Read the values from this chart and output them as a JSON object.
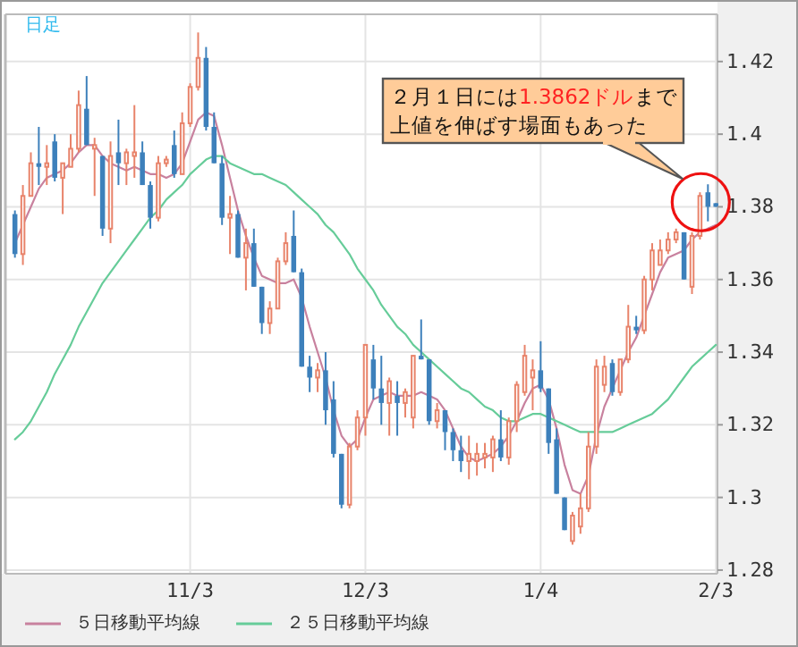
{
  "chart_data": {
    "type": "candlestick",
    "title": "日足",
    "categories": [
      null,
      null,
      null,
      null,
      null,
      null,
      null,
      null,
      null,
      null,
      null,
      null,
      null,
      null,
      null,
      null,
      null,
      null,
      null,
      null,
      null,
      null,
      "11/3",
      null,
      null,
      null,
      null,
      null,
      null,
      null,
      null,
      null,
      null,
      null,
      null,
      null,
      null,
      null,
      null,
      null,
      null,
      null,
      null,
      null,
      "12/3",
      null,
      null,
      null,
      null,
      null,
      null,
      null,
      null,
      null,
      null,
      null,
      null,
      null,
      null,
      null,
      null,
      null,
      null,
      null,
      null,
      null,
      "1/4",
      null,
      null,
      null,
      null,
      null,
      null,
      null,
      null,
      null,
      null,
      null,
      null,
      null,
      null,
      null,
      null,
      null,
      null,
      null,
      null,
      null,
      "2/3"
    ],
    "ohlc": [
      [
        1.378,
        1.379,
        1.366,
        1.367
      ],
      [
        1.367,
        1.386,
        1.364,
        1.383
      ],
      [
        1.383,
        1.395,
        1.383,
        1.392
      ],
      [
        1.392,
        1.402,
        1.386,
        1.391
      ],
      [
        1.391,
        1.397,
        1.386,
        1.392
      ],
      [
        1.398,
        1.4,
        1.387,
        1.388
      ],
      [
        1.388,
        1.392,
        1.378,
        1.392
      ],
      [
        1.391,
        1.4,
        1.391,
        1.396
      ],
      [
        1.396,
        1.412,
        1.395,
        1.408
      ],
      [
        1.407,
        1.416,
        1.397,
        1.397
      ],
      [
        1.396,
        1.399,
        1.383,
        1.397
      ],
      [
        1.394,
        1.394,
        1.372,
        1.374
      ],
      [
        1.374,
        1.398,
        1.37,
        1.394
      ],
      [
        1.395,
        1.404,
        1.386,
        1.392
      ],
      [
        1.392,
        1.396,
        1.386,
        1.395
      ],
      [
        1.394,
        1.408,
        1.388,
        1.395
      ],
      [
        1.395,
        1.398,
        1.386,
        1.386
      ],
      [
        1.386,
        1.387,
        1.374,
        1.377
      ],
      [
        1.377,
        1.394,
        1.376,
        1.392
      ],
      [
        1.392,
        1.394,
        1.391,
        1.393
      ],
      [
        1.397,
        1.401,
        1.388,
        1.389
      ],
      [
        1.389,
        1.406,
        1.389,
        1.403
      ],
      [
        1.403,
        1.414,
        1.402,
        1.413
      ],
      [
        1.413,
        1.428,
        1.412,
        1.421
      ],
      [
        1.421,
        1.424,
        1.401,
        1.402
      ],
      [
        1.402,
        1.406,
        1.392,
        1.392
      ],
      [
        1.392,
        1.394,
        1.375,
        1.377
      ],
      [
        1.377,
        1.383,
        1.367,
        1.378
      ],
      [
        1.378,
        1.379,
        1.366,
        1.366
      ],
      [
        1.366,
        1.374,
        1.357,
        1.37
      ],
      [
        1.37,
        1.374,
        1.358,
        1.358
      ],
      [
        1.358,
        1.358,
        1.345,
        1.348
      ],
      [
        1.348,
        1.354,
        1.345,
        1.352
      ],
      [
        1.352,
        1.366,
        1.352,
        1.365
      ],
      [
        1.365,
        1.373,
        1.364,
        1.37
      ],
      [
        1.372,
        1.379,
        1.362,
        1.362
      ],
      [
        1.362,
        1.363,
        1.336,
        1.336
      ],
      [
        1.336,
        1.339,
        1.329,
        1.333
      ],
      [
        1.333,
        1.337,
        1.329,
        1.335
      ],
      [
        1.335,
        1.34,
        1.32,
        1.324
      ],
      [
        1.327,
        1.332,
        1.311,
        1.312
      ],
      [
        1.312,
        1.312,
        1.297,
        1.298
      ],
      [
        1.298,
        1.315,
        1.297,
        1.314
      ],
      [
        1.314,
        1.324,
        1.313,
        1.322
      ],
      [
        1.322,
        1.342,
        1.317,
        1.342
      ],
      [
        1.338,
        1.342,
        1.327,
        1.33
      ],
      [
        1.33,
        1.339,
        1.32,
        1.326
      ],
      [
        1.326,
        1.333,
        1.317,
        1.332
      ],
      [
        1.328,
        1.332,
        1.317,
        1.326
      ],
      [
        1.326,
        1.33,
        1.322,
        1.329
      ],
      [
        1.322,
        1.339,
        1.319,
        1.339
      ],
      [
        1.339,
        1.349,
        1.338,
        1.338
      ],
      [
        1.338,
        1.338,
        1.32,
        1.321
      ],
      [
        1.321,
        1.326,
        1.319,
        1.324
      ],
      [
        1.324,
        1.324,
        1.313,
        1.318
      ],
      [
        1.318,
        1.319,
        1.31,
        1.313
      ],
      [
        1.313,
        1.317,
        1.307,
        1.31
      ],
      [
        1.31,
        1.317,
        1.305,
        1.312
      ],
      [
        1.31,
        1.315,
        1.306,
        1.312
      ],
      [
        1.311,
        1.315,
        1.308,
        1.312
      ],
      [
        1.311,
        1.317,
        1.307,
        1.316
      ],
      [
        1.316,
        1.324,
        1.31,
        1.311
      ],
      [
        1.311,
        1.322,
        1.309,
        1.321
      ],
      [
        1.321,
        1.332,
        1.318,
        1.331
      ],
      [
        1.329,
        1.342,
        1.328,
        1.339
      ],
      [
        1.333,
        1.338,
        1.324,
        1.335
      ],
      [
        1.335,
        1.343,
        1.329,
        1.33
      ],
      [
        1.33,
        1.33,
        1.312,
        1.315
      ],
      [
        1.316,
        1.319,
        1.301,
        1.301
      ],
      [
        1.3,
        1.3,
        1.291,
        1.291
      ],
      [
        1.288,
        1.296,
        1.287,
        1.295
      ],
      [
        1.292,
        1.301,
        1.29,
        1.297
      ],
      [
        1.297,
        1.318,
        1.296,
        1.314
      ],
      [
        1.314,
        1.338,
        1.312,
        1.336
      ],
      [
        1.331,
        1.339,
        1.329,
        1.336
      ],
      [
        1.337,
        1.338,
        1.328,
        1.329
      ],
      [
        1.329,
        1.338,
        1.328,
        1.338
      ],
      [
        1.338,
        1.353,
        1.337,
        1.347
      ],
      [
        1.347,
        1.35,
        1.345,
        1.346
      ],
      [
        1.346,
        1.361,
        1.345,
        1.36
      ],
      [
        1.36,
        1.37,
        1.357,
        1.368
      ],
      [
        1.364,
        1.371,
        1.364,
        1.368
      ],
      [
        1.368,
        1.373,
        1.367,
        1.371
      ],
      [
        1.371,
        1.374,
        1.37,
        1.373
      ],
      [
        1.373,
        1.373,
        1.36,
        1.36
      ],
      [
        1.358,
        1.373,
        1.356,
        1.372
      ],
      [
        1.372,
        1.384,
        1.371,
        1.383
      ],
      [
        1.384,
        1.3862,
        1.376,
        1.38
      ],
      [
        1.381,
        1.381,
        1.38,
        1.38
      ]
    ],
    "series": [
      {
        "name": "５日移動平均線",
        "type": "line",
        "color": "#c8819e",
        "values": [
          1.37,
          1.375,
          1.38,
          1.385,
          1.388,
          1.389,
          1.39,
          1.392,
          1.395,
          1.397,
          1.397,
          1.394,
          1.392,
          1.391,
          1.39,
          1.391,
          1.39,
          1.389,
          1.389,
          1.388,
          1.389,
          1.392,
          1.398,
          1.404,
          1.406,
          1.405,
          1.397,
          1.388,
          1.379,
          1.372,
          1.366,
          1.361,
          1.36,
          1.359,
          1.359,
          1.36,
          1.355,
          1.347,
          1.34,
          1.333,
          1.324,
          1.317,
          1.314,
          1.316,
          1.322,
          1.327,
          1.328,
          1.329,
          1.328,
          1.328,
          1.328,
          1.329,
          1.328,
          1.327,
          1.324,
          1.319,
          1.314,
          1.311,
          1.31,
          1.311,
          1.312,
          1.314,
          1.317,
          1.321,
          1.326,
          1.33,
          1.331,
          1.327,
          1.319,
          1.309,
          1.302,
          1.301,
          1.306,
          1.317,
          1.325,
          1.33,
          1.335,
          1.34,
          1.344,
          1.35,
          1.356,
          1.362,
          1.366,
          1.367,
          1.368,
          1.371,
          1.373,
          1.374,
          1.375
        ]
      },
      {
        "name": "２５日移動平均線",
        "type": "line",
        "color": "#66cc99",
        "values": [
          1.316,
          1.318,
          1.321,
          1.325,
          1.329,
          1.334,
          1.338,
          1.342,
          1.347,
          1.351,
          1.355,
          1.359,
          1.362,
          1.365,
          1.368,
          1.371,
          1.374,
          1.377,
          1.379,
          1.382,
          1.384,
          1.386,
          1.389,
          1.391,
          1.393,
          1.394,
          1.394,
          1.392,
          1.391,
          1.39,
          1.389,
          1.389,
          1.388,
          1.387,
          1.386,
          1.384,
          1.382,
          1.38,
          1.378,
          1.375,
          1.373,
          1.37,
          1.367,
          1.363,
          1.36,
          1.357,
          1.353,
          1.35,
          1.347,
          1.345,
          1.342,
          1.34,
          1.338,
          1.336,
          1.334,
          1.332,
          1.33,
          1.329,
          1.327,
          1.325,
          1.324,
          1.322,
          1.321,
          1.321,
          1.322,
          1.323,
          1.323,
          1.322,
          1.321,
          1.32,
          1.319,
          1.318,
          1.318,
          1.318,
          1.318,
          1.318,
          1.319,
          1.32,
          1.321,
          1.322,
          1.323,
          1.325,
          1.327,
          1.33,
          1.333,
          1.336,
          1.338,
          1.34,
          1.342
        ]
      }
    ],
    "ylim": [
      1.279,
      1.433
    ],
    "yticks": [
      1.28,
      1.3,
      1.32,
      1.34,
      1.36,
      1.38,
      1.4,
      1.42
    ],
    "grid": true,
    "legend": "bottom",
    "annotations": [
      "２月１日には1.3862ドルまで上値を伸ばす場面もあった"
    ]
  }
}
